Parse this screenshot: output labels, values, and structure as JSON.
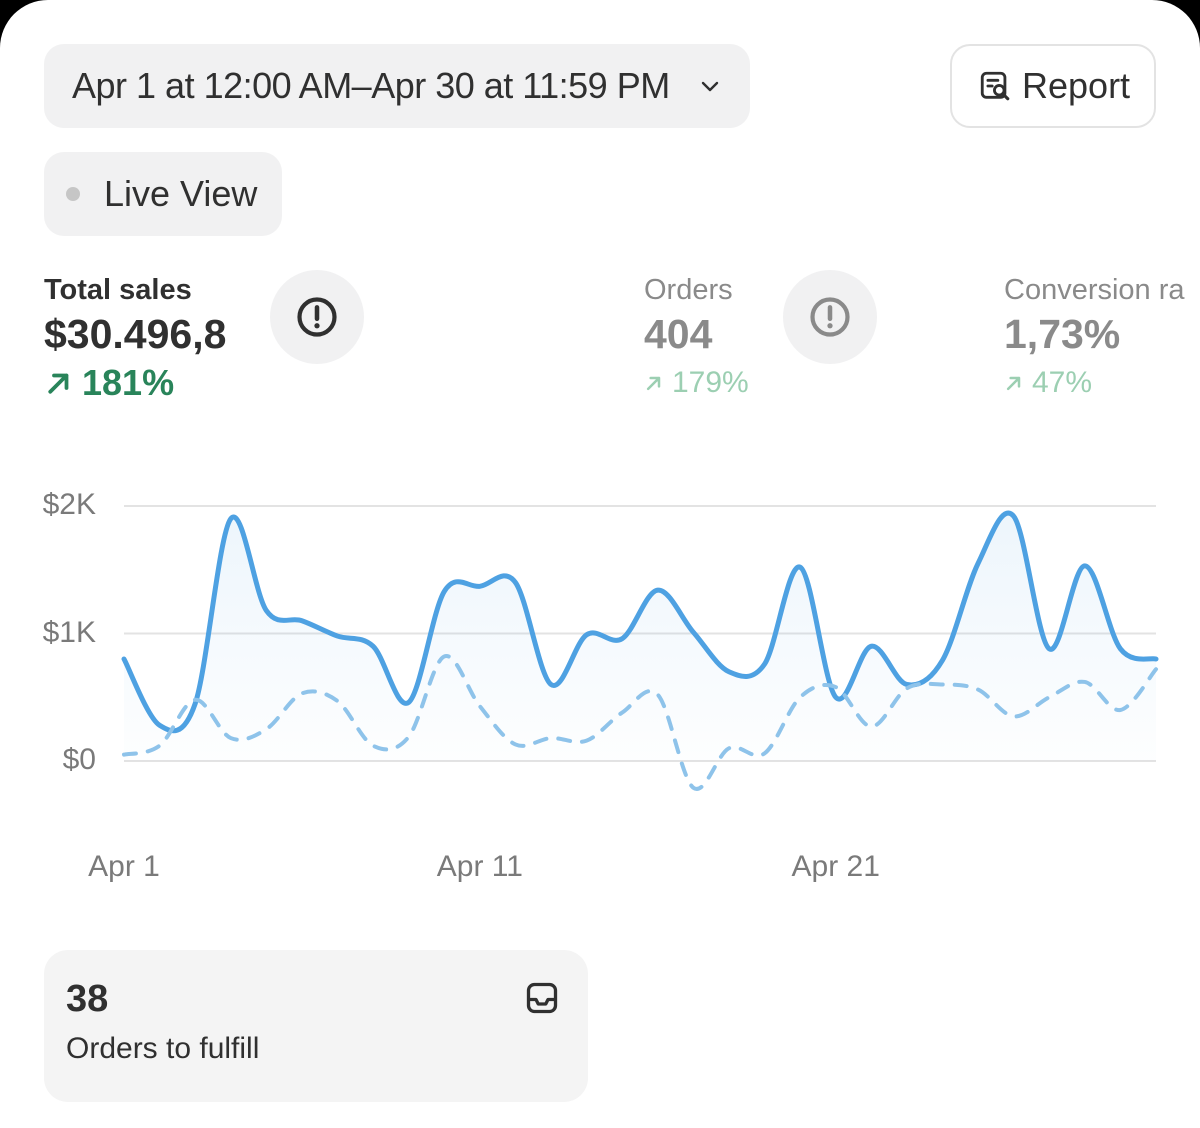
{
  "date_range": {
    "label": "Apr 1 at 12:00 AM–Apr 30 at 11:59 PM",
    "icon": "chevron-down-icon"
  },
  "report_button": {
    "label": "Report",
    "icon": "report-search-icon"
  },
  "live_view": {
    "label": "Live View",
    "indicator_color": "#c6c6c6"
  },
  "metrics": [
    {
      "label": "Total sales",
      "value": "$30.496,8",
      "change": "181%",
      "active": true
    },
    {
      "label": "Orders",
      "value": "404",
      "change": "179%",
      "active": false
    },
    {
      "label": "Conversion ra",
      "value": "1,73%",
      "change": "47%",
      "active": false
    }
  ],
  "chart_data": {
    "type": "line",
    "x": [
      1,
      2,
      3,
      4,
      5,
      6,
      7,
      8,
      9,
      10,
      11,
      12,
      13,
      14,
      15,
      16,
      17,
      18,
      19,
      20,
      21,
      22,
      23,
      24,
      25,
      26,
      27,
      28,
      29,
      30
    ],
    "xticks": [
      {
        "x": 1,
        "label": "Apr 1"
      },
      {
        "x": 11,
        "label": "Apr 11"
      },
      {
        "x": 21,
        "label": "Apr 21"
      }
    ],
    "yticks": [
      {
        "v": 0,
        "label": "$0"
      },
      {
        "v": 1000,
        "label": "$1K"
      },
      {
        "v": 2000,
        "label": "$2K"
      }
    ],
    "ylim": [
      0,
      2000
    ],
    "series": [
      {
        "style": "solid",
        "color": "#4ea1e2",
        "values": [
          800,
          280,
          450,
          1900,
          1180,
          1100,
          980,
          900,
          460,
          1330,
          1370,
          1400,
          600,
          990,
          960,
          1340,
          1010,
          700,
          760,
          1520,
          500,
          900,
          600,
          790,
          1550,
          1920,
          880,
          1530,
          880,
          800
        ]
      },
      {
        "style": "dashed",
        "color": "#8ec3ea",
        "values": [
          50,
          120,
          480,
          180,
          250,
          530,
          470,
          120,
          190,
          820,
          430,
          130,
          180,
          160,
          380,
          520,
          -210,
          100,
          60,
          500,
          580,
          270,
          570,
          600,
          560,
          350,
          500,
          620,
          400,
          720
        ]
      }
    ],
    "grid": true
  },
  "fulfill_tile": {
    "count": "38",
    "label": "Orders to fulfill",
    "icon": "inbox-icon"
  }
}
